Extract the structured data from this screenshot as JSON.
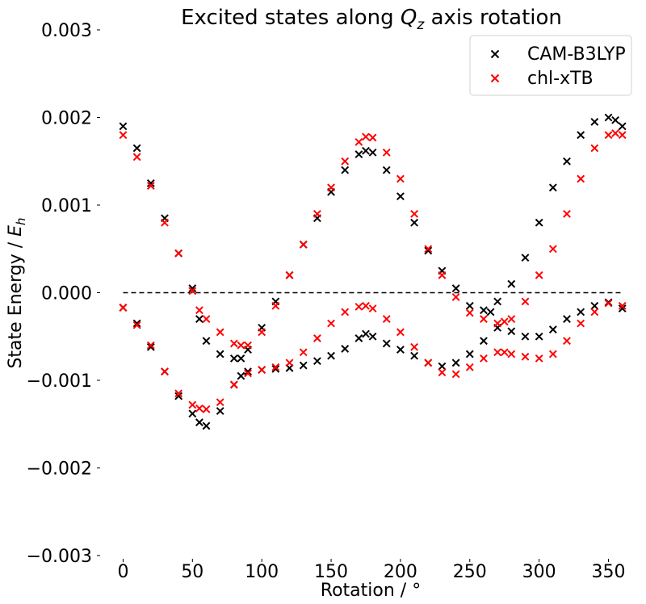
{
  "chart_data": {
    "type": "scatter",
    "title_prefix": "Excited states along ",
    "title_symbol": "Q",
    "title_subscript": "z",
    "title_suffix": " axis rotation",
    "xlabel": "Rotation / °",
    "ylabel_prefix": "State  Energy / ",
    "ylabel_symbol": "E",
    "ylabel_subscript": "h",
    "xlim": [
      -9,
      366
    ],
    "ylim": [
      -0.003,
      0.003
    ],
    "xticks": [
      0,
      50,
      100,
      150,
      200,
      250,
      300,
      350
    ],
    "xtick_labels": [
      "0",
      "50",
      "100",
      "150",
      "200",
      "250",
      "300",
      "350"
    ],
    "yticks": [
      -0.003,
      -0.002,
      -0.001,
      0.0,
      0.001,
      0.002,
      0.003
    ],
    "ytick_labels": [
      "−0.003",
      "−0.002",
      "−0.001",
      "0.000",
      "0.001",
      "0.002",
      "0.003"
    ],
    "reference_line": {
      "y": 0,
      "x_range": [
        0,
        360
      ],
      "style": "dashed",
      "color": "#000000"
    },
    "legend_position": "top-right",
    "marker": "x",
    "series": [
      {
        "name": "CAM-B3LYP",
        "color": "#000000",
        "curves": [
          {
            "x": [
              0,
              10,
              20,
              30,
              40,
              50,
              55,
              60,
              70,
              80,
              85,
              90,
              100,
              110,
              120,
              130,
              140,
              150,
              160,
              170,
              175,
              180,
              190,
              200,
              210,
              220,
              230,
              240,
              250,
              260,
              265,
              270,
              280,
              290,
              300,
              310,
              320,
              330,
              340,
              350,
              355,
              360
            ],
            "y": [
              0.0019,
              0.00165,
              0.00125,
              0.00085,
              0.00045,
              5e-05,
              -0.0003,
              -0.00055,
              -0.0007,
              -0.00075,
              -0.00075,
              -0.00065,
              -0.0004,
              -0.0001,
              0.0002,
              0.00055,
              0.00085,
              0.00115,
              0.0014,
              0.00158,
              0.00162,
              0.0016,
              0.0014,
              0.0011,
              0.0008,
              0.00048,
              0.00025,
              5e-05,
              -0.00015,
              -0.0002,
              -0.00022,
              -0.0001,
              0.0001,
              0.0004,
              0.0008,
              0.0012,
              0.0015,
              0.0018,
              0.00195,
              0.002,
              0.00197,
              0.0019
            ]
          },
          {
            "x": [
              0,
              10,
              20,
              30,
              40,
              50,
              55,
              60,
              70,
              80,
              85,
              90,
              100,
              110,
              120,
              130,
              140,
              150,
              160,
              170,
              175,
              180,
              190,
              200,
              210,
              220,
              230,
              240,
              250,
              260,
              270,
              280,
              290,
              300,
              310,
              320,
              330,
              340,
              350,
              360
            ],
            "y": [
              -0.00017,
              -0.00035,
              -0.00062,
              -0.0009,
              -0.00118,
              -0.00138,
              -0.00148,
              -0.00152,
              -0.00135,
              -0.00105,
              -0.00095,
              -0.0009,
              -0.00088,
              -0.00087,
              -0.00086,
              -0.00083,
              -0.00078,
              -0.00072,
              -0.00064,
              -0.00052,
              -0.00047,
              -0.0005,
              -0.00058,
              -0.00065,
              -0.00072,
              -0.0008,
              -0.00084,
              -0.0008,
              -0.0007,
              -0.00055,
              -0.0004,
              -0.00044,
              -0.0005,
              -0.0005,
              -0.00042,
              -0.0003,
              -0.00022,
              -0.00015,
              -0.00011,
              -0.00018
            ]
          }
        ]
      },
      {
        "name": "chl-xTB",
        "color": "#ff0000",
        "curves": [
          {
            "x": [
              0,
              10,
              20,
              30,
              40,
              50,
              55,
              60,
              70,
              80,
              85,
              90,
              100,
              110,
              120,
              130,
              140,
              150,
              160,
              170,
              175,
              180,
              190,
              200,
              210,
              220,
              230,
              240,
              250,
              260,
              270,
              275,
              280,
              290,
              300,
              310,
              320,
              330,
              340,
              350,
              355,
              360
            ],
            "y": [
              0.0018,
              0.00155,
              0.00122,
              0.0008,
              0.00045,
              2e-05,
              -0.0002,
              -0.0003,
              -0.00045,
              -0.00058,
              -0.0006,
              -0.0006,
              -0.00045,
              -0.00015,
              0.0002,
              0.00055,
              0.0009,
              0.0012,
              0.0015,
              0.00172,
              0.00178,
              0.00177,
              0.0016,
              0.0013,
              0.0009,
              0.0005,
              0.0002,
              -5e-05,
              -0.00023,
              -0.0003,
              -0.00035,
              -0.00033,
              -0.0003,
              -0.0001,
              0.0002,
              0.0005,
              0.0009,
              0.0013,
              0.00165,
              0.0018,
              0.00182,
              0.0018
            ]
          },
          {
            "x": [
              0,
              10,
              20,
              30,
              40,
              50,
              55,
              60,
              70,
              80,
              90,
              100,
              110,
              120,
              130,
              140,
              150,
              160,
              170,
              175,
              180,
              190,
              200,
              210,
              220,
              230,
              240,
              250,
              260,
              270,
              275,
              280,
              290,
              300,
              310,
              320,
              330,
              340,
              350,
              360
            ],
            "y": [
              -0.00017,
              -0.00037,
              -0.0006,
              -0.0009,
              -0.00115,
              -0.00128,
              -0.00132,
              -0.00133,
              -0.00125,
              -0.00105,
              -0.00092,
              -0.00088,
              -0.00085,
              -0.0008,
              -0.00068,
              -0.00052,
              -0.00035,
              -0.00022,
              -0.00016,
              -0.00015,
              -0.00018,
              -0.0003,
              -0.00045,
              -0.00062,
              -0.0008,
              -0.00091,
              -0.00093,
              -0.00085,
              -0.00075,
              -0.00068,
              -0.00068,
              -0.0007,
              -0.00073,
              -0.00075,
              -0.0007,
              -0.00055,
              -0.00035,
              -0.00022,
              -0.00012,
              -0.00015
            ]
          }
        ]
      }
    ]
  }
}
